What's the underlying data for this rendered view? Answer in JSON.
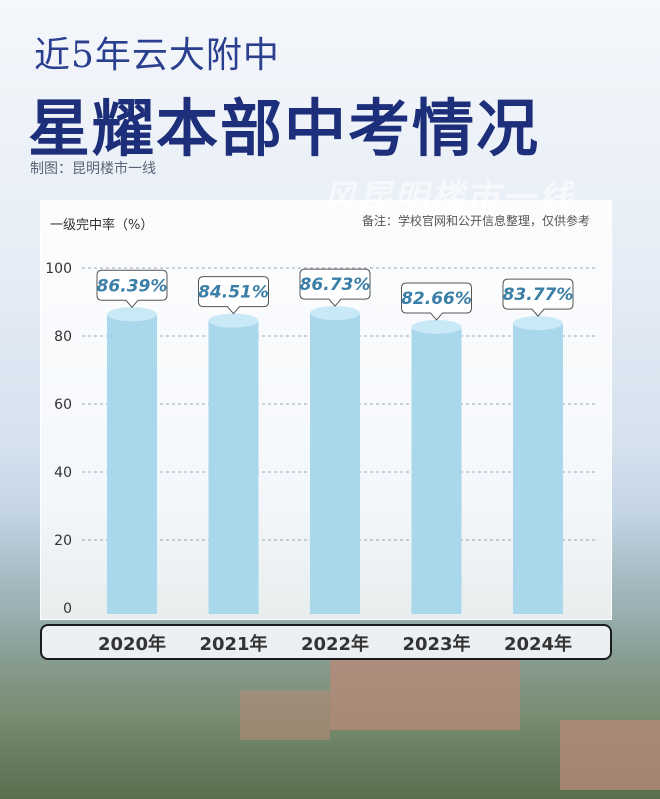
{
  "header": {
    "subtitle": "近5年云大附中",
    "title": "星耀本部中考情况",
    "credit": "制图：昆明楼市一线",
    "watermark": "风昆明楼市一线"
  },
  "chart_data": {
    "type": "bar",
    "title": "",
    "ylabel": "一级完中率（%）",
    "note": "备注：学校官网和公开信息整理，仅供参考",
    "categories": [
      "2020年",
      "2021年",
      "2022年",
      "2023年",
      "2024年"
    ],
    "values": [
      86.39,
      84.51,
      86.73,
      82.66,
      83.77
    ],
    "value_labels": [
      "86.39%",
      "84.51%",
      "86.73%",
      "82.66%",
      "83.77%"
    ],
    "ylim": [
      0,
      100
    ],
    "yticks": [
      "0",
      "20",
      "40",
      "60",
      "80",
      "100"
    ],
    "grid": true,
    "colors": {
      "bar": "#a9d8ec",
      "bar_top": "#c9e9f6",
      "label_text": "#3b7fa8"
    }
  }
}
